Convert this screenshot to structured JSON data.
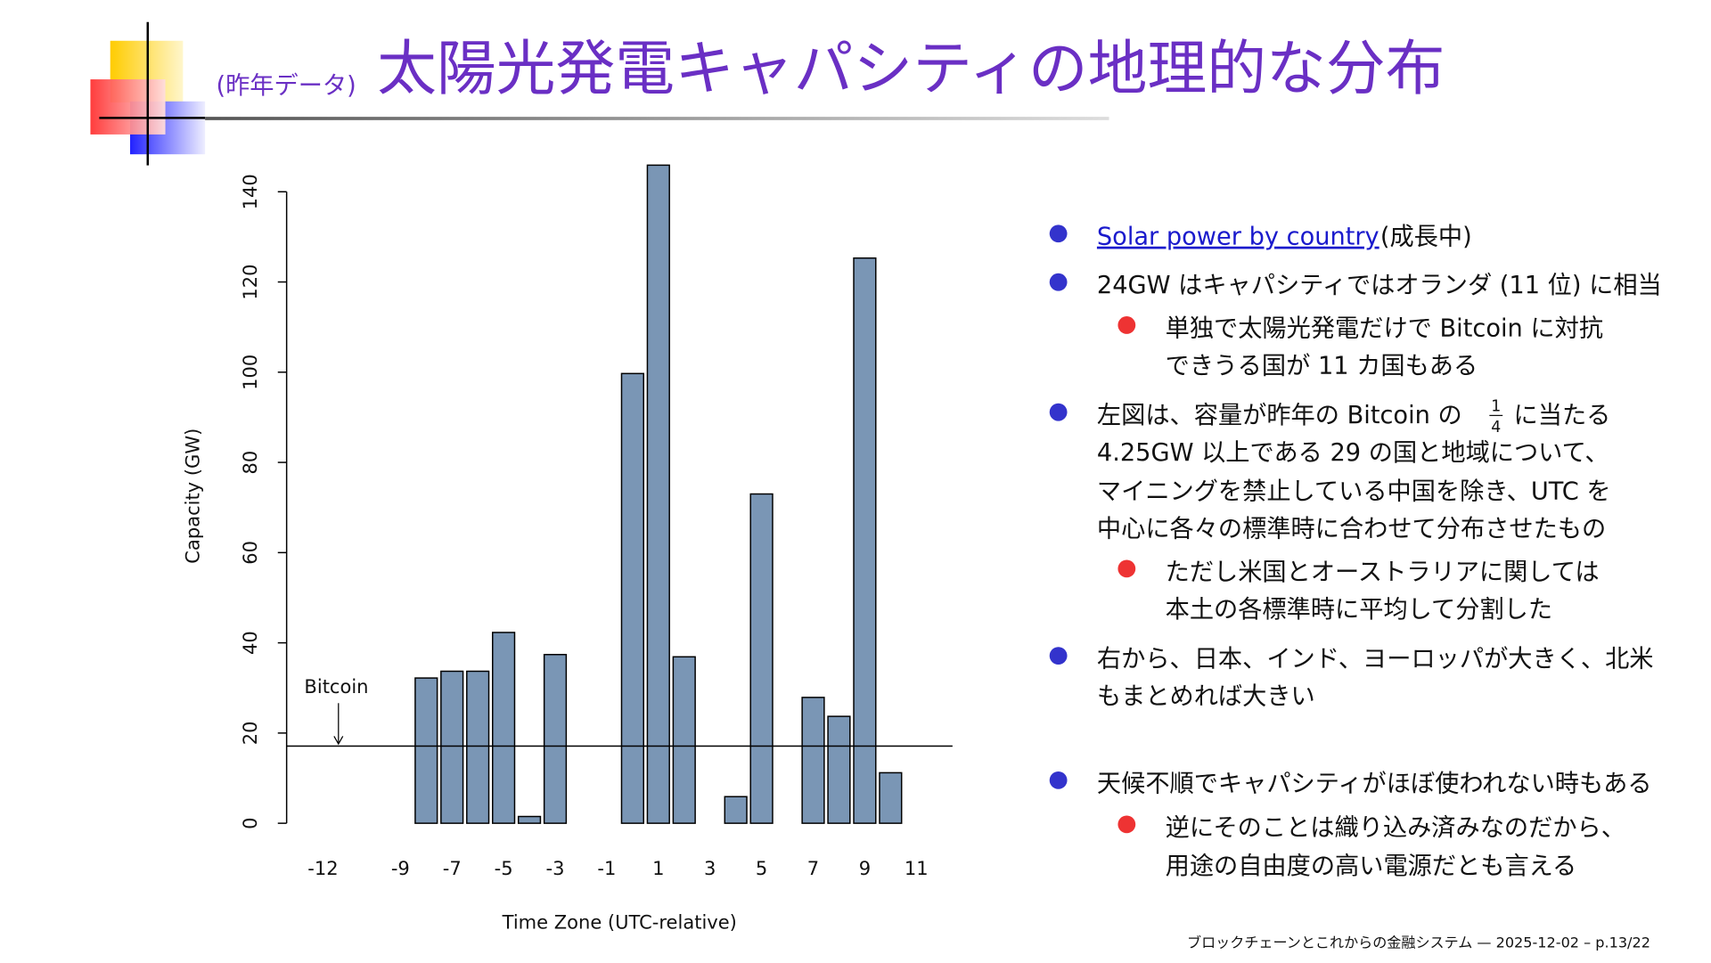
{
  "header": {
    "prefix": "(昨年データ)",
    "title": "太陽光発電キャパシティの地理的な分布"
  },
  "chart_data": {
    "type": "bar",
    "xlabel": "Time Zone (UTC-relative)",
    "ylabel": "Capacity (GW)",
    "categories": [
      "-12",
      null,
      null,
      "-9",
      null,
      "-7",
      null,
      "-5",
      null,
      "-3",
      null,
      "-1",
      null,
      "1",
      null,
      "3",
      null,
      "5",
      null,
      "7",
      null,
      "9",
      null,
      "11"
    ],
    "values": [
      0,
      0,
      0,
      0,
      32.2,
      33.7,
      33.7,
      42.3,
      1.5,
      37.4,
      0,
      0,
      99.7,
      145.9,
      36.9,
      0,
      5.9,
      73,
      0,
      27.9,
      23.7,
      125.3,
      11.2,
      0
    ],
    "color": "#7a96b5",
    "ylim": [
      0,
      140
    ],
    "yticks": [
      0,
      20,
      40,
      60,
      80,
      100,
      120,
      140
    ],
    "hline": {
      "value": 17.1,
      "label": "Bitcoin"
    }
  },
  "bullets": {
    "b1": {
      "link": "Solar power by country",
      "text": "(成長中)"
    },
    "b2": {
      "line": "24GW はキャパシティではオランダ (11 位) に相当",
      "sub": [
        "単独で太陽光発電だけで Bitcoin に対抗",
        "できうる国が 11 カ国もある"
      ]
    },
    "b3": {
      "before": "左図は、容量が昨年の Bitcoin の",
      "num": "1",
      "den": "4",
      "after": "に当たる",
      "lines": [
        "4.25GW 以上である 29 の国と地域について、",
        "マイニングを禁止している中国を除き、UTC を",
        "中心に各々の標準時に合わせて分布させたもの"
      ],
      "sub": [
        "ただし米国とオーストラリアに関しては",
        "本土の各標準時に平均して分割した"
      ]
    },
    "b4": {
      "lines": [
        "右から、日本、インド、ヨーロッパが大きく、北米",
        "もまとめれば大きい"
      ]
    },
    "b5": {
      "line": "天候不順でキャパシティがほぼ使われない時もある",
      "sub": [
        "逆にそのことは織り込み済みなのだから、",
        "用途の自由度の高い電源だとも言える"
      ]
    }
  },
  "footer": "ブロックチェーンとこれからの金融システム — 2025-12-02 – p.13/22"
}
